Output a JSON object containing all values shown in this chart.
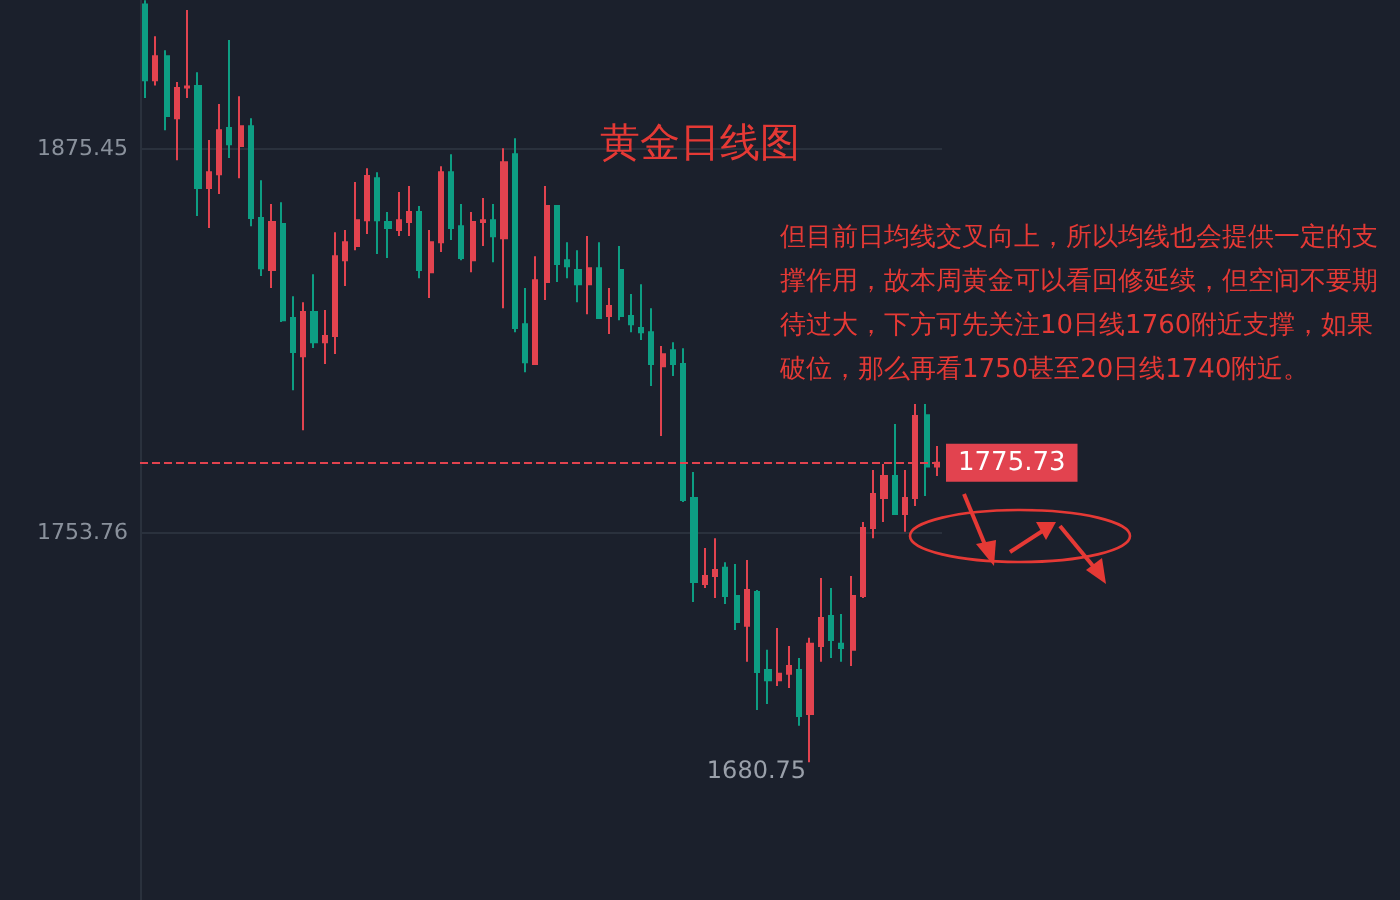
{
  "chart_data": {
    "type": "candlestick",
    "title": "黄金日线图",
    "annotations": [
      "但目前日均线交叉向上，所以均线也会提供一定的支撑作用，故本周黄金可以看回修延续，但空间不要期待过大，下方可先关注10日线1760附近支撑，如果破位，那么再看1750甚至20日线1740附近。",
      "1680.75"
    ],
    "categories": [
      null,
      null,
      null,
      null,
      null,
      null,
      null,
      null,
      null,
      null,
      null,
      null,
      null,
      null,
      null,
      null,
      null,
      null,
      null,
      null,
      null,
      null,
      null,
      null,
      null,
      null,
      null,
      null,
      null,
      null,
      null,
      null,
      null,
      null,
      null,
      null,
      null,
      null,
      null,
      null,
      null,
      null,
      null,
      null,
      null,
      null,
      null,
      null,
      null,
      null,
      null,
      null,
      null,
      null,
      null,
      null,
      null,
      null,
      null,
      null,
      null,
      null,
      null,
      null,
      null,
      null,
      null,
      null,
      null,
      null,
      null,
      null,
      null,
      null,
      null,
      null
    ],
    "ohlc": [
      [
        1921.0,
        1922.3,
        1891.3,
        1897.0
      ],
      [
        1897.0,
        1910.9,
        1895.3,
        1904.6
      ],
      [
        1904.6,
        1906.5,
        1881.1,
        1885.6
      ],
      [
        1884.9,
        1896.4,
        1871.6,
        1894.5
      ],
      [
        1894.7,
        1919.2,
        1891.3,
        1895.0
      ],
      [
        1895.1,
        1899.5,
        1853.9,
        1862.8
      ],
      [
        1862.8,
        1878.0,
        1850.1,
        1867.8
      ],
      [
        1867.2,
        1889.4,
        1860.9,
        1881.1
      ],
      [
        1881.8,
        1909.7,
        1872.3,
        1876.7
      ],
      [
        1876.1,
        1891.9,
        1865.9,
        1882.4
      ],
      [
        1882.4,
        1884.9,
        1850.7,
        1853.3
      ],
      [
        1853.3,
        1865.3,
        1834.9,
        1837.4
      ],
      [
        1836.8,
        1857.7,
        1831.1,
        1852.0
      ],
      [
        1851.4,
        1858.3,
        1820.3,
        1820.9
      ],
      [
        1821.6,
        1828.5,
        1798.7,
        1810.8
      ],
      [
        1809.5,
        1826.6,
        1786.0,
        1823.5
      ],
      [
        1823.5,
        1835.5,
        1812.1,
        1813.9
      ],
      [
        1813.9,
        1824.1,
        1807.0,
        1815.9
      ],
      [
        1815.9,
        1848.8,
        1810.2,
        1841.2
      ],
      [
        1839.9,
        1849.5,
        1831.7,
        1845.6
      ],
      [
        1844.4,
        1864.7,
        1843.1,
        1852.6
      ],
      [
        1852.6,
        1869.1,
        1848.2,
        1866.6
      ],
      [
        1865.9,
        1867.8,
        1841.9,
        1852.6
      ],
      [
        1852.0,
        1855.2,
        1840.6,
        1850.1
      ],
      [
        1849.5,
        1861.5,
        1847.6,
        1852.6
      ],
      [
        1852.0,
        1863.4,
        1847.6,
        1855.2
      ],
      [
        1855.2,
        1857.1,
        1834.2,
        1836.8
      ],
      [
        1836.1,
        1849.5,
        1827.9,
        1845.6
      ],
      [
        1845.6,
        1869.7,
        1842.5,
        1867.8
      ],
      [
        1867.8,
        1873.5,
        1846.3,
        1850.1
      ],
      [
        1850.7,
        1857.7,
        1839.9,
        1840.6
      ],
      [
        1839.9,
        1855.2,
        1836.1,
        1852.0
      ],
      [
        1852.0,
        1859.6,
        1844.4,
        1852.6
      ],
      [
        1852.6,
        1857.7,
        1839.3,
        1847.5
      ],
      [
        1846.9,
        1875.4,
        1824.7,
        1871.0
      ],
      [
        1873.5,
        1878.6,
        1817.1,
        1818.4
      ],
      [
        1819.6,
        1831.1,
        1804.4,
        1807.6
      ],
      [
        1807.0,
        1841.2,
        1806.8,
        1833.6
      ],
      [
        1833.0,
        1863.4,
        1827.3,
        1857.1
      ],
      [
        1857.1,
        1857.3,
        1833.0,
        1838.7
      ],
      [
        1839.9,
        1845.6,
        1834.2,
        1838.0
      ],
      [
        1836.8,
        1843.1,
        1826.6,
        1832.3
      ],
      [
        1832.3,
        1847.6,
        1822.8,
        1837.4
      ],
      [
        1837.4,
        1845.6,
        1821.4,
        1821.6
      ],
      [
        1822.2,
        1831.1,
        1816.5,
        1825.4
      ],
      [
        1836.8,
        1844.4,
        1820.9,
        1822.2
      ],
      [
        1822.2,
        1829.2,
        1817.1,
        1819.6
      ],
      [
        1818.4,
        1832.3,
        1814.6,
        1817.1
      ],
      [
        1817.1,
        1824.7,
        1800.0,
        1807.0
      ],
      [
        1806.3,
        1812.7,
        1784.2,
        1810.1
      ],
      [
        1811.4,
        1813.9,
        1803.2,
        1807.0
      ],
      [
        1807.0,
        1812.0,
        1763.3,
        1763.9
      ],
      [
        1764.5,
        1772.8,
        1731.6,
        1737.9
      ],
      [
        1737.3,
        1748.7,
        1736.0,
        1739.8
      ],
      [
        1739.8,
        1751.8,
        1732.8,
        1741.7
      ],
      [
        1742.4,
        1744.2,
        1730.9,
        1733.5
      ],
      [
        1733.5,
        1743.6,
        1722.7,
        1725.2
      ],
      [
        1724.0,
        1744.9,
        1712.6,
        1735.4
      ],
      [
        1734.7,
        1735.4,
        1697.3,
        1709.4
      ],
      [
        1710.0,
        1716.4,
        1699.2,
        1706.8
      ],
      [
        1706.8,
        1723.3,
        1704.9,
        1708.8
      ],
      [
        1708.8,
        1717.6,
        1704.3,
        1711.3
      ],
      [
        1710.0,
        1713.8,
        1692.3,
        1695.4
      ],
      [
        1696.1,
        1720.2,
        1680.75,
        1718.3
      ],
      [
        1717.6,
        1739.2,
        1712.6,
        1726.5
      ],
      [
        1727.1,
        1736.0,
        1713.8,
        1719.5
      ],
      [
        1718.3,
        1727.8,
        1712.6,
        1717.0
      ],
      [
        1716.4,
        1739.8,
        1711.3,
        1733.5
      ],
      [
        1733.5,
        1756.9,
        1732.8,
        1755.0
      ],
      [
        1755.0,
        1773.4,
        1751.8,
        1765.8
      ],
      [
        1764.5,
        1775.3,
        1756.9,
        1771.5
      ],
      [
        1771.5,
        1788.0,
        1759.4,
        1759.5
      ],
      [
        1759.5,
        1773.4,
        1753.8,
        1764.5
      ],
      [
        1764.5,
        1794.3,
        1762.0,
        1790.5
      ],
      [
        1790.8,
        1794.3,
        1765.2,
        1774.5
      ],
      [
        1774.5,
        1781.0,
        1771.5,
        1775.73
      ]
    ],
    "colors": [
      "#0d9e83",
      "#e2434f",
      "#0d9e83",
      "#e2434f",
      "#e2434f",
      "#0d9e83",
      "#e2434f",
      "#e2434f",
      "#0d9e83",
      "#e2434f",
      "#0d9e83",
      "#0d9e83",
      "#e2434f",
      "#0d9e83",
      "#0d9e83",
      "#e2434f",
      "#0d9e83",
      "#e2434f",
      "#e2434f",
      "#e2434f",
      "#e2434f",
      "#e2434f",
      "#0d9e83",
      "#0d9e83",
      "#e2434f",
      "#e2434f",
      "#0d9e83",
      "#e2434f",
      "#e2434f",
      "#0d9e83",
      "#0d9e83",
      "#e2434f",
      "#e2434f",
      "#0d9e83",
      "#e2434f",
      "#0d9e83",
      "#0d9e83",
      "#e2434f",
      "#e2434f",
      "#0d9e83",
      "#0d9e83",
      "#0d9e83",
      "#e2434f",
      "#0d9e83",
      "#e2434f",
      "#0d9e83",
      "#0d9e83",
      "#0d9e83",
      "#0d9e83",
      "#e2434f",
      "#0d9e83",
      "#0d9e83",
      "#0d9e83",
      "#e2434f",
      "#e2434f",
      "#0d9e83",
      "#0d9e83",
      "#e2434f",
      "#0d9e83",
      "#0d9e83",
      "#e2434f",
      "#e2434f",
      "#0d9e83",
      "#e2434f",
      "#e2434f",
      "#0d9e83",
      "#0d9e83",
      "#e2434f",
      "#e2434f",
      "#e2434f",
      "#e2434f",
      "#0d9e83",
      "#e2434f",
      "#e2434f",
      "#0d9e83",
      "#e2434f"
    ],
    "ylim": [
      1637.1,
      1922.4
    ],
    "yticks": [
      1753.76,
      1875.45
    ],
    "ref_lines": [
      {
        "axis": "y",
        "value": 1775.73,
        "label": "1775.73",
        "color": "#e2434f",
        "line_style": "dashed"
      }
    ],
    "grid": "y",
    "tick_labels": "y"
  }
}
